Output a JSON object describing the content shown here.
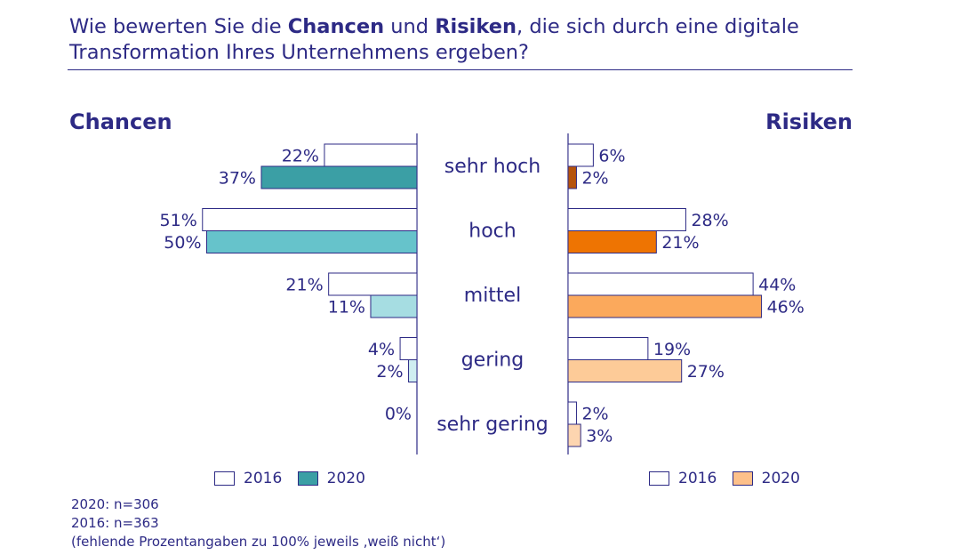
{
  "title": {
    "part1": "Wie bewerten Sie die ",
    "bold1": "Chancen",
    "part2": " und ",
    "bold2": "Risiken",
    "part3": ", die sich durch eine digitale Transformation Ihres Unternehmens ergeben?"
  },
  "chart_data": {
    "type": "bar",
    "orientation": "horizontal",
    "categories": [
      "sehr hoch",
      "hoch",
      "mittel",
      "gering",
      "sehr gering"
    ],
    "panels": [
      {
        "name": "Chancen",
        "direction": "left",
        "series": [
          {
            "name": "2016",
            "values": [
              22,
              51,
              21,
              4,
              0
            ],
            "labels": [
              "22%",
              "51%",
              "21%",
              "4%",
              "0%"
            ],
            "color": "#ffffff"
          },
          {
            "name": "2020",
            "values": [
              37,
              50,
              11,
              2,
              null
            ],
            "labels": [
              "37%",
              "50%",
              "11%",
              "2%",
              ""
            ],
            "colors": [
              "#3b9fa5",
              "#66c3cb",
              "#a6dde2",
              "#cfeef1",
              "#cfeef1"
            ]
          }
        ]
      },
      {
        "name": "Risiken",
        "direction": "right",
        "series": [
          {
            "name": "2016",
            "values": [
              6,
              28,
              44,
              19,
              2
            ],
            "labels": [
              "6%",
              "28%",
              "44%",
              "19%",
              "2%"
            ],
            "color": "#ffffff"
          },
          {
            "name": "2020",
            "values": [
              2,
              21,
              46,
              27,
              3
            ],
            "labels": [
              "2%",
              "21%",
              "46%",
              "27%",
              "3%"
            ],
            "colors": [
              "#b5530c",
              "#ee7402",
              "#fba95c",
              "#fdcb98",
              "#fdd5b0"
            ]
          }
        ]
      }
    ],
    "legend": {
      "left": [
        {
          "label": "2016",
          "color": "#ffffff"
        },
        {
          "label": "2020",
          "color": "#3b9fa5"
        }
      ],
      "right": [
        {
          "label": "2016",
          "color": "#ffffff"
        },
        {
          "label": "2020",
          "color": "#fdc08a"
        }
      ]
    },
    "xlim": [
      0,
      60
    ]
  },
  "footnotes": [
    "2020: n=306",
    "2016: n=363",
    "(fehlende Prozentangaben zu 100% jeweils ‚weiß nicht‘)"
  ],
  "colors": {
    "text": "#2d2a85",
    "outline": "#2d2a85"
  }
}
